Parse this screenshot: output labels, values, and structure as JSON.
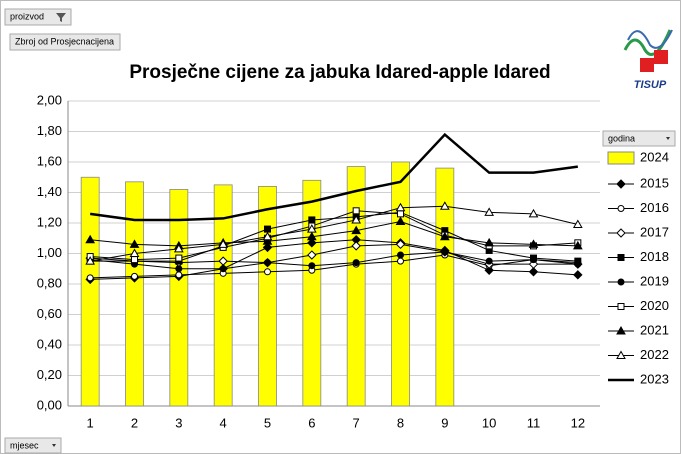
{
  "ui": {
    "filter": "proizvod",
    "sum_field": "Zbroj od Prosjecnacijena",
    "axis_field": "mjesec",
    "legend_field": "godina",
    "logo": "TISUP"
  },
  "chart_data": {
    "type": "combo",
    "title": "Prosječne cijene za jabuka Idared-apple Idared",
    "categories": [
      "1",
      "2",
      "3",
      "4",
      "5",
      "6",
      "7",
      "8",
      "9",
      "10",
      "11",
      "12"
    ],
    "ylim": [
      0,
      2
    ],
    "yticks": [
      {
        "value": 0,
        "label": "0,00"
      },
      {
        "value": 0.2,
        "label": "0,20"
      },
      {
        "value": 0.4,
        "label": "0,40"
      },
      {
        "value": 0.6,
        "label": "0,60"
      },
      {
        "value": 0.8,
        "label": "0,80"
      },
      {
        "value": 1,
        "label": "1,00"
      },
      {
        "value": 1.2,
        "label": "1,20"
      },
      {
        "value": 1.4,
        "label": "1,40"
      },
      {
        "value": 1.6,
        "label": "1,60"
      },
      {
        "value": 1.8,
        "label": "1,80"
      },
      {
        "value": 2,
        "label": "2,00"
      }
    ],
    "grid": true,
    "legend": "right",
    "series": [
      {
        "name": "2024",
        "type": "bar",
        "color": "#ffff00",
        "values": [
          1.5,
          1.47,
          1.42,
          1.45,
          1.44,
          1.48,
          1.57,
          1.6,
          1.56,
          null,
          null,
          null
        ]
      },
      {
        "name": "2015",
        "type": "line",
        "color": "#000000",
        "marker": "diamond",
        "filled": true,
        "values": [
          0.83,
          0.84,
          0.85,
          0.9,
          1.04,
          1.07,
          1.09,
          1.07,
          1.02,
          0.89,
          0.88,
          0.86
        ]
      },
      {
        "name": "2016",
        "type": "line",
        "color": "#000000",
        "marker": "circle",
        "filled": false,
        "values": [
          0.84,
          0.85,
          0.86,
          0.87,
          0.88,
          0.89,
          0.93,
          0.95,
          0.99,
          0.92,
          0.96,
          0.94
        ]
      },
      {
        "name": "2017",
        "type": "line",
        "color": "#000000",
        "marker": "diamond",
        "filled": false,
        "values": [
          0.97,
          0.95,
          0.94,
          0.95,
          0.94,
          0.99,
          1.05,
          1.06,
          1.01,
          0.93,
          0.93,
          0.93
        ]
      },
      {
        "name": "2018",
        "type": "line",
        "color": "#000000",
        "marker": "square",
        "filled": true,
        "values": [
          0.95,
          0.95,
          0.95,
          1.05,
          1.16,
          1.22,
          1.24,
          1.27,
          1.15,
          1.02,
          0.97,
          0.95
        ]
      },
      {
        "name": "2019",
        "type": "line",
        "color": "#000000",
        "marker": "circle",
        "filled": true,
        "values": [
          0.96,
          0.93,
          0.9,
          0.9,
          0.94,
          0.92,
          0.94,
          0.99,
          1.01,
          0.95,
          0.96,
          0.93
        ]
      },
      {
        "name": "2020",
        "type": "line",
        "color": "#000000",
        "marker": "square",
        "filled": false,
        "values": [
          0.98,
          0.96,
          0.97,
          1.04,
          1.1,
          1.18,
          1.28,
          1.26,
          1.12,
          1.05,
          1.05,
          1.07
        ]
      },
      {
        "name": "2021",
        "type": "line",
        "color": "#000000",
        "marker": "triangle",
        "filled": true,
        "values": [
          1.09,
          1.06,
          1.05,
          1.07,
          1.08,
          1.11,
          1.15,
          1.21,
          1.11,
          1.07,
          1.06,
          1.05
        ]
      },
      {
        "name": "2022",
        "type": "line",
        "color": "#000000",
        "marker": "triangle",
        "filled": false,
        "values": [
          0.95,
          1.0,
          1.03,
          1.06,
          1.11,
          1.16,
          1.22,
          1.3,
          1.31,
          1.27,
          1.26,
          1.19
        ]
      },
      {
        "name": "2023",
        "type": "line",
        "color": "#000000",
        "marker": "none",
        "filled": false,
        "width": 2.5,
        "values": [
          1.26,
          1.22,
          1.22,
          1.23,
          1.29,
          1.34,
          1.41,
          1.47,
          1.78,
          1.53,
          1.53,
          1.57
        ]
      }
    ]
  }
}
